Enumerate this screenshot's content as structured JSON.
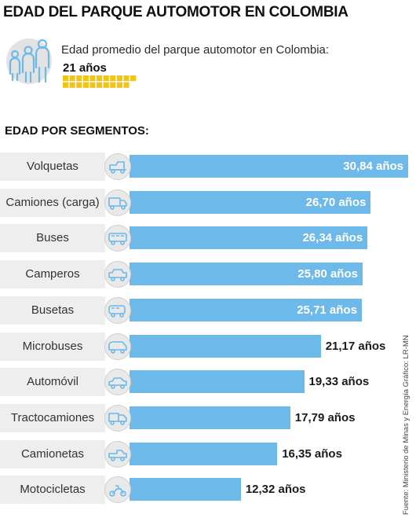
{
  "title": "EDAD DEL PARQUE AUTOMOTOR EN COLOMBIA",
  "average": {
    "label": "Edad promedio del parque automotor en Colombia:",
    "value_text": "21 años",
    "value": 21
  },
  "segments_title": "EDAD POR SEGMENTOS:",
  "source": "Fuente: Ministerio de Minas y Energía  Gráfico: LR-MN",
  "colors": {
    "bar": "#6cb9ea",
    "waffle": "#f0c419",
    "icon": "#6cb9ea"
  },
  "chart_data": {
    "type": "bar",
    "orientation": "horizontal",
    "categories": [
      "Volquetas",
      "Camiones (carga)",
      "Buses",
      "Camperos",
      "Busetas",
      "Microbuses",
      "Automóvil",
      "Tractocamiones",
      "Camionetas",
      "Motocicletas"
    ],
    "values": [
      30.84,
      26.7,
      26.34,
      25.8,
      25.71,
      21.17,
      19.33,
      17.79,
      16.35,
      12.32
    ],
    "labels": [
      "30,84 años",
      "26,70 años",
      "26,34 años",
      "25,80 años",
      "25,71 años",
      "21,17 años",
      "19,33 años",
      "17,79 años",
      "16,35 años",
      "12,32 años"
    ],
    "icons": [
      "dump-truck-icon",
      "cargo-truck-icon",
      "bus-icon",
      "jeep-icon",
      "minibus-icon",
      "microbus-icon",
      "car-icon",
      "tractor-truck-icon",
      "pickup-icon",
      "motorcycle-icon"
    ],
    "title": "EDAD POR SEGMENTOS:",
    "xlabel": "",
    "ylabel": "",
    "grid": false,
    "legend": "none"
  }
}
